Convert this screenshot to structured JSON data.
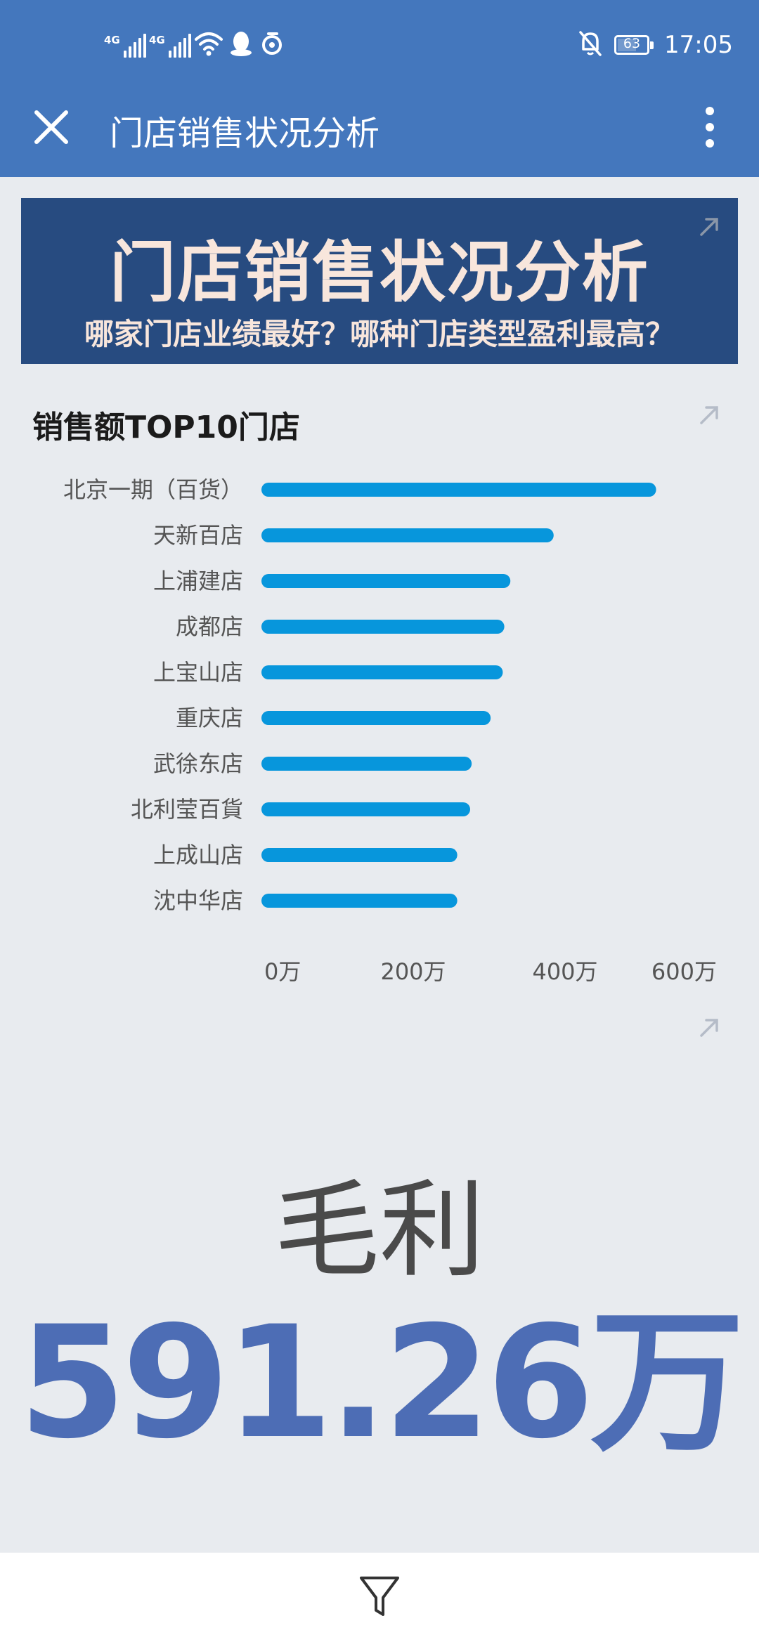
{
  "status_bar": {
    "signal1_label": "4G",
    "signal2_label": "4G",
    "battery": "63",
    "time": "17:05"
  },
  "header": {
    "title": "门店销售状况分析",
    "close_icon": "close-icon",
    "more_icon": "more-vertical-icon"
  },
  "banner": {
    "title": "门店销售状况分析",
    "subtitle": "哪家门店业绩最好？哪种门店类型盈利最高？"
  },
  "chart_data": {
    "type": "bar",
    "orientation": "horizontal",
    "title": "销售额TOP10门店",
    "categories": [
      "北京一期（百货）",
      "天新百店",
      "上浦建店",
      "成都店",
      "上宝山店",
      "重庆店",
      "武徐东店",
      "北利莹百貨",
      "上成山店",
      "沈中华店"
    ],
    "values": [
      520,
      385,
      328,
      320,
      318,
      302,
      277,
      275,
      258,
      258
    ],
    "x_ticks": [
      "0万",
      "200万",
      "400万",
      "600万"
    ],
    "xlim": [
      0,
      600
    ],
    "bar_color": "#0796dc",
    "grid": false
  },
  "kpi": {
    "label": "毛利",
    "value": "591.26万"
  },
  "bottom": {
    "filter_icon": "filter-icon"
  }
}
